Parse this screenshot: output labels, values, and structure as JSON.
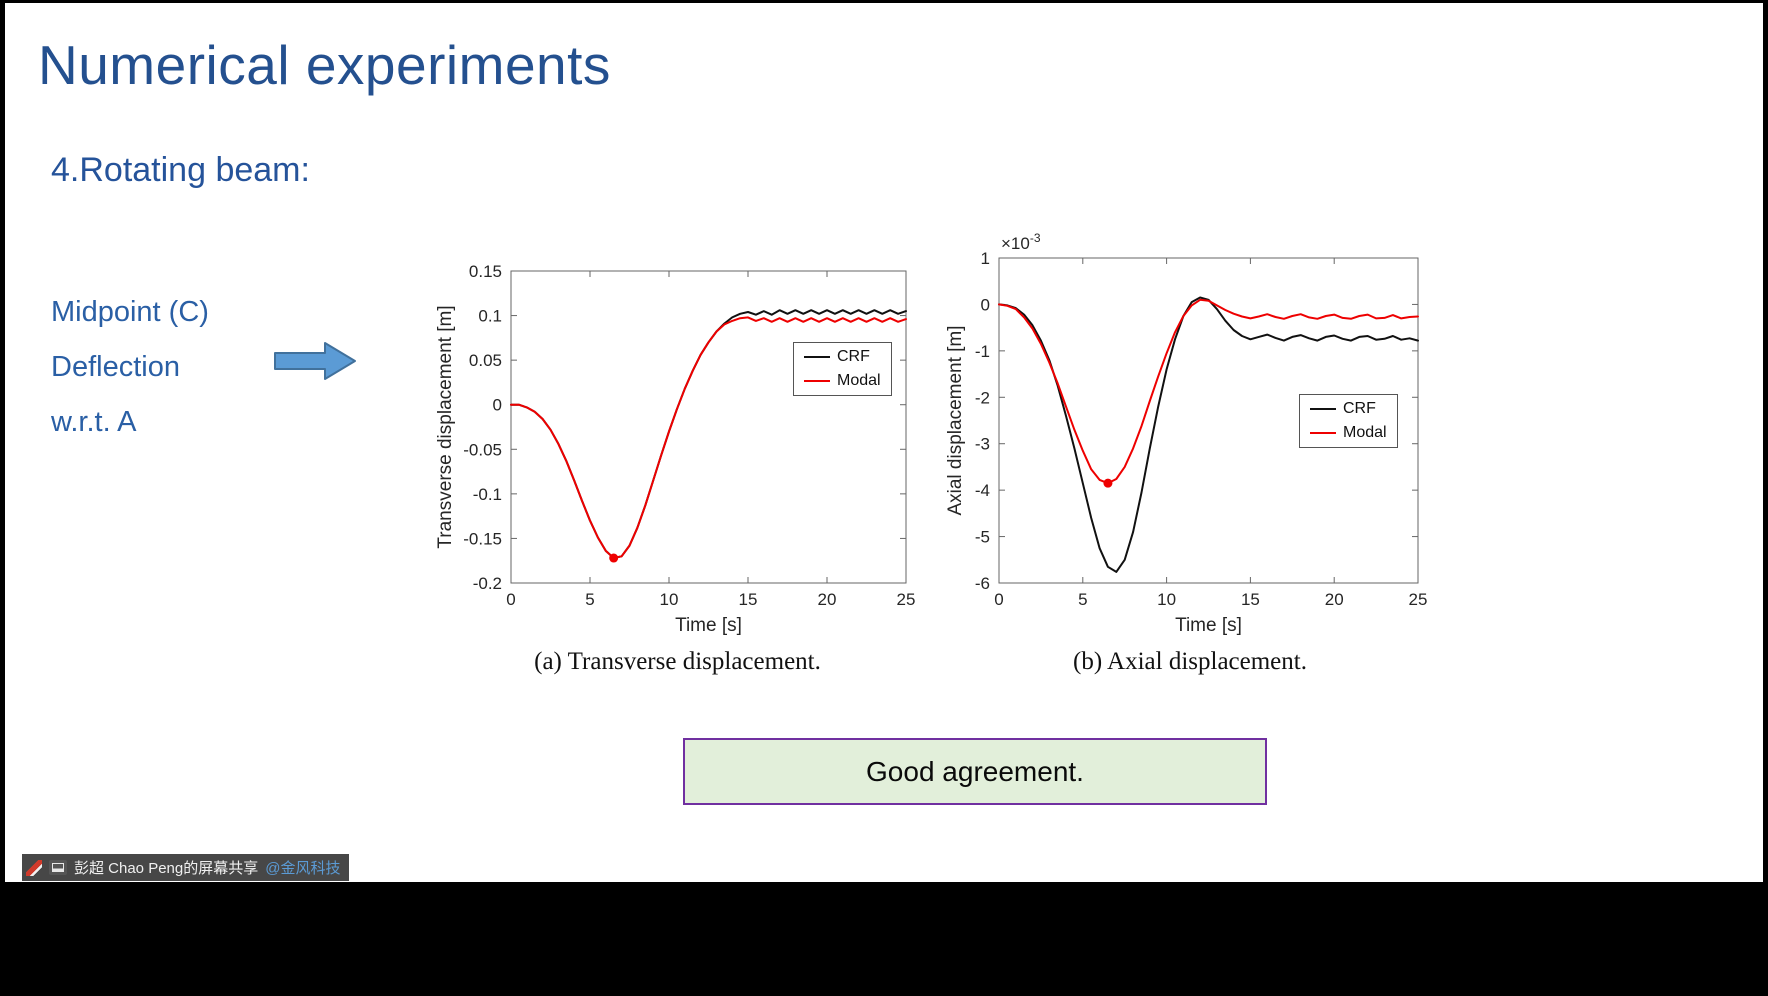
{
  "slide": {
    "title": "Numerical experiments",
    "subtitle": "4.Rotating beam:",
    "bullets": [
      "Midpoint (C)",
      "Deflection",
      "w.r.t. A"
    ],
    "captions": [
      "(a) Transverse displacement.",
      "(b) Axial displacement."
    ],
    "callout": "Good agreement.",
    "colors": {
      "title": "#24508F",
      "subtitle": "#25539A",
      "text": "#2A5FA5",
      "arrow-fill": "#5B9BD5",
      "arrow-stroke": "#41719C",
      "callout-bg": "#E2EFDA",
      "callout-border": "#7030A0",
      "mention": "#5B9BD5"
    }
  },
  "share_bar": {
    "text": "彭超 Chao Peng的屏幕共享",
    "mention": "@金风科技",
    "icons": [
      "annotation-pen-icon",
      "screen-thumbnail-icon"
    ]
  },
  "chart_data": [
    {
      "type": "line",
      "title": "",
      "xlabel": "Time [s]",
      "ylabel": "Transverse displacement [m]",
      "xlim": [
        0,
        25
      ],
      "ylim": [
        -0.2,
        0.15
      ],
      "xticks": [
        0,
        5,
        10,
        15,
        20,
        25
      ],
      "yticks": [
        0.15,
        0.1,
        0.05,
        0,
        -0.05,
        -0.1,
        -0.15,
        -0.2
      ],
      "grid": false,
      "legend": {
        "position": "inside-upper-right",
        "entries": [
          "CRF",
          "Modal"
        ]
      },
      "series": [
        {
          "name": "CRF",
          "color": "#111111",
          "points": [
            [
              0,
              0
            ],
            [
              0.5,
              0
            ],
            [
              1,
              -0.003
            ],
            [
              1.5,
              -0.008
            ],
            [
              2,
              -0.016
            ],
            [
              2.5,
              -0.028
            ],
            [
              3,
              -0.044
            ],
            [
              3.5,
              -0.063
            ],
            [
              4,
              -0.085
            ],
            [
              4.5,
              -0.108
            ],
            [
              5,
              -0.13
            ],
            [
              5.5,
              -0.149
            ],
            [
              6,
              -0.164
            ],
            [
              6.5,
              -0.172
            ],
            [
              7,
              -0.17
            ],
            [
              7.5,
              -0.158
            ],
            [
              8,
              -0.138
            ],
            [
              8.5,
              -0.113
            ],
            [
              9,
              -0.085
            ],
            [
              9.5,
              -0.057
            ],
            [
              10,
              -0.03
            ],
            [
              10.5,
              -0.005
            ],
            [
              11,
              0.018
            ],
            [
              11.5,
              0.038
            ],
            [
              12,
              0.056
            ],
            [
              12.5,
              0.07
            ],
            [
              13,
              0.082
            ],
            [
              13.5,
              0.091
            ],
            [
              14,
              0.098
            ],
            [
              14.5,
              0.102
            ],
            [
              15,
              0.104
            ],
            [
              15.5,
              0.101
            ],
            [
              16,
              0.105
            ],
            [
              16.5,
              0.101
            ],
            [
              17,
              0.106
            ],
            [
              17.5,
              0.102
            ],
            [
              18,
              0.106
            ],
            [
              18.5,
              0.102
            ],
            [
              19,
              0.106
            ],
            [
              19.5,
              0.102
            ],
            [
              20,
              0.106
            ],
            [
              20.5,
              0.102
            ],
            [
              21,
              0.106
            ],
            [
              21.5,
              0.102
            ],
            [
              22,
              0.106
            ],
            [
              22.5,
              0.102
            ],
            [
              23,
              0.106
            ],
            [
              23.5,
              0.102
            ],
            [
              24,
              0.106
            ],
            [
              24.5,
              0.102
            ],
            [
              25,
              0.105
            ]
          ]
        },
        {
          "name": "Modal",
          "color": "#EE0000",
          "points": [
            [
              0,
              0
            ],
            [
              0.5,
              0
            ],
            [
              1,
              -0.003
            ],
            [
              1.5,
              -0.008
            ],
            [
              2,
              -0.016
            ],
            [
              2.5,
              -0.028
            ],
            [
              3,
              -0.044
            ],
            [
              3.5,
              -0.063
            ],
            [
              4,
              -0.085
            ],
            [
              4.5,
              -0.108
            ],
            [
              5,
              -0.13
            ],
            [
              5.5,
              -0.149
            ],
            [
              6,
              -0.164
            ],
            [
              6.5,
              -0.172
            ],
            [
              7,
              -0.17
            ],
            [
              7.5,
              -0.158
            ],
            [
              8,
              -0.138
            ],
            [
              8.5,
              -0.113
            ],
            [
              9,
              -0.085
            ],
            [
              9.5,
              -0.057
            ],
            [
              10,
              -0.03
            ],
            [
              10.5,
              -0.005
            ],
            [
              11,
              0.018
            ],
            [
              11.5,
              0.038
            ],
            [
              12,
              0.056
            ],
            [
              12.5,
              0.07
            ],
            [
              13,
              0.082
            ],
            [
              13.5,
              0.09
            ],
            [
              14,
              0.094
            ],
            [
              14.5,
              0.097
            ],
            [
              15,
              0.098
            ],
            [
              15.5,
              0.094
            ],
            [
              16,
              0.097
            ],
            [
              16.5,
              0.093
            ],
            [
              17,
              0.097
            ],
            [
              17.5,
              0.093
            ],
            [
              18,
              0.097
            ],
            [
              18.5,
              0.093
            ],
            [
              19,
              0.097
            ],
            [
              19.5,
              0.093
            ],
            [
              20,
              0.097
            ],
            [
              20.5,
              0.093
            ],
            [
              21,
              0.097
            ],
            [
              21.5,
              0.093
            ],
            [
              22,
              0.097
            ],
            [
              22.5,
              0.093
            ],
            [
              23,
              0.097
            ],
            [
              23.5,
              0.093
            ],
            [
              24,
              0.097
            ],
            [
              24.5,
              0.093
            ],
            [
              25,
              0.096
            ]
          ]
        }
      ],
      "markers": [
        {
          "x": 6.5,
          "y": -0.172,
          "color": "#EE0000"
        }
      ]
    },
    {
      "type": "line",
      "title": "",
      "xlabel": "Time [s]",
      "ylabel": "Axial displacement [m]",
      "offset_label": {
        "base": "×10",
        "exp": "-3"
      },
      "xlim": [
        0,
        25
      ],
      "ylim": [
        -6,
        1
      ],
      "xticks": [
        0,
        5,
        10,
        15,
        20,
        25
      ],
      "yticks": [
        1,
        0,
        -1,
        -2,
        -3,
        -4,
        -5,
        -6
      ],
      "grid": false,
      "legend": {
        "position": "inside-middle-right",
        "entries": [
          "CRF",
          "Modal"
        ]
      },
      "series": [
        {
          "name": "CRF",
          "color": "#111111",
          "points": [
            [
              0,
              0
            ],
            [
              0.5,
              -0.02
            ],
            [
              1,
              -0.08
            ],
            [
              1.5,
              -0.22
            ],
            [
              2,
              -0.45
            ],
            [
              2.5,
              -0.78
            ],
            [
              3,
              -1.2
            ],
            [
              3.5,
              -1.75
            ],
            [
              4,
              -2.4
            ],
            [
              4.5,
              -3.1
            ],
            [
              5,
              -3.85
            ],
            [
              5.5,
              -4.6
            ],
            [
              6,
              -5.25
            ],
            [
              6.5,
              -5.65
            ],
            [
              7,
              -5.76
            ],
            [
              7.5,
              -5.5
            ],
            [
              8,
              -4.9
            ],
            [
              8.5,
              -4.05
            ],
            [
              9,
              -3.1
            ],
            [
              9.5,
              -2.2
            ],
            [
              10,
              -1.4
            ],
            [
              10.5,
              -0.75
            ],
            [
              11,
              -0.25
            ],
            [
              11.5,
              0.05
            ],
            [
              12,
              0.15
            ],
            [
              12.5,
              0.1
            ],
            [
              13,
              -0.1
            ],
            [
              13.5,
              -0.35
            ],
            [
              14,
              -0.55
            ],
            [
              14.5,
              -0.68
            ],
            [
              15,
              -0.75
            ],
            [
              15.5,
              -0.7
            ],
            [
              16,
              -0.65
            ],
            [
              16.5,
              -0.72
            ],
            [
              17,
              -0.78
            ],
            [
              17.5,
              -0.7
            ],
            [
              18,
              -0.66
            ],
            [
              18.5,
              -0.73
            ],
            [
              19,
              -0.78
            ],
            [
              19.5,
              -0.7
            ],
            [
              20,
              -0.67
            ],
            [
              20.5,
              -0.74
            ],
            [
              21,
              -0.78
            ],
            [
              21.5,
              -0.7
            ],
            [
              22,
              -0.68
            ],
            [
              22.5,
              -0.76
            ],
            [
              23,
              -0.74
            ],
            [
              23.5,
              -0.68
            ],
            [
              24,
              -0.76
            ],
            [
              24.5,
              -0.73
            ],
            [
              25,
              -0.78
            ]
          ]
        },
        {
          "name": "Modal",
          "color": "#EE0000",
          "points": [
            [
              0,
              0
            ],
            [
              0.5,
              -0.03
            ],
            [
              1,
              -0.1
            ],
            [
              1.5,
              -0.28
            ],
            [
              2,
              -0.52
            ],
            [
              2.5,
              -0.85
            ],
            [
              3,
              -1.25
            ],
            [
              3.5,
              -1.7
            ],
            [
              4,
              -2.2
            ],
            [
              4.5,
              -2.7
            ],
            [
              5,
              -3.15
            ],
            [
              5.5,
              -3.55
            ],
            [
              6,
              -3.78
            ],
            [
              6.5,
              -3.85
            ],
            [
              7,
              -3.76
            ],
            [
              7.5,
              -3.5
            ],
            [
              8,
              -3.1
            ],
            [
              8.5,
              -2.62
            ],
            [
              9,
              -2.08
            ],
            [
              9.5,
              -1.55
            ],
            [
              10,
              -1.05
            ],
            [
              10.5,
              -0.6
            ],
            [
              11,
              -0.25
            ],
            [
              11.5,
              -0.02
            ],
            [
              12,
              0.1
            ],
            [
              12.5,
              0.08
            ],
            [
              13,
              -0.02
            ],
            [
              13.5,
              -0.12
            ],
            [
              14,
              -0.2
            ],
            [
              14.5,
              -0.26
            ],
            [
              15,
              -0.3
            ],
            [
              15.5,
              -0.26
            ],
            [
              16,
              -0.21
            ],
            [
              16.5,
              -0.27
            ],
            [
              17,
              -0.31
            ],
            [
              17.5,
              -0.25
            ],
            [
              18,
              -0.21
            ],
            [
              18.5,
              -0.28
            ],
            [
              19,
              -0.31
            ],
            [
              19.5,
              -0.25
            ],
            [
              20,
              -0.22
            ],
            [
              20.5,
              -0.29
            ],
            [
              21,
              -0.31
            ],
            [
              21.5,
              -0.25
            ],
            [
              22,
              -0.22
            ],
            [
              22.5,
              -0.3
            ],
            [
              23,
              -0.29
            ],
            [
              23.5,
              -0.23
            ],
            [
              24,
              -0.3
            ],
            [
              24.5,
              -0.27
            ],
            [
              25,
              -0.26
            ]
          ]
        }
      ],
      "markers": [
        {
          "x": 6.5,
          "y": -3.85,
          "color": "#EE0000"
        }
      ]
    }
  ]
}
